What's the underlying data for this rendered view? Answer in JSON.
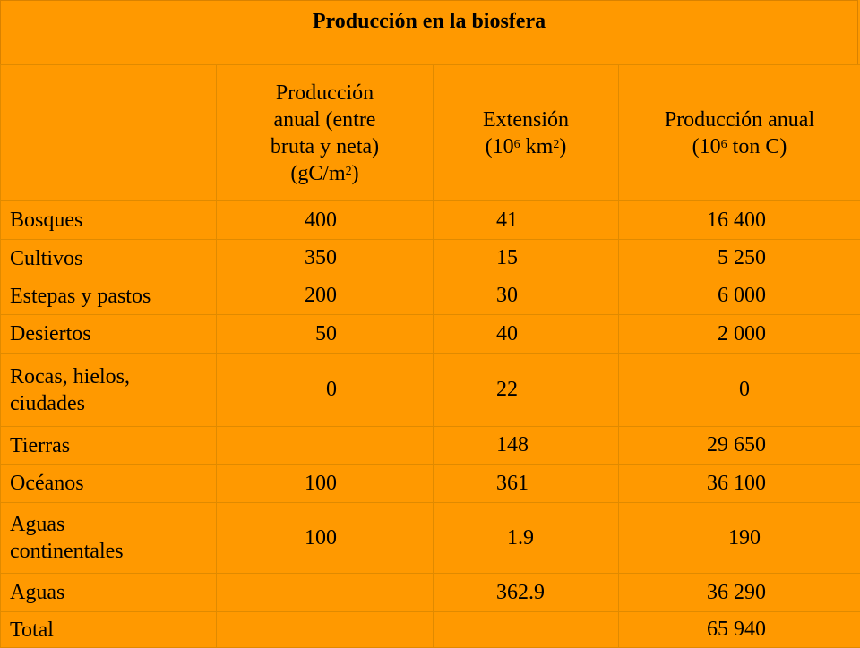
{
  "title": "Producción en la biosfera",
  "headers": {
    "col1": {
      "l1": "Producción",
      "l2": "anual (entre",
      "l3": "bruta y neta)",
      "l4a": "(gC/m",
      "l4sup": "2",
      "l4b": ")"
    },
    "col2": {
      "l1": "Extensión",
      "l2a": "(10",
      "l2sup1": "6",
      "l2b": " km",
      "l2sup2": "2",
      "l2c": ")"
    },
    "col3": {
      "l1": "Producción anual",
      "l2a": "(10",
      "l2sup": "6",
      "l2b": " ton C)"
    }
  },
  "rows": [
    {
      "label": "Bosques",
      "produccion": "400",
      "extension": "41",
      "anual": "16 400"
    },
    {
      "label": "Cultivos",
      "produccion": "350",
      "extension": "15",
      "anual": "  5 250"
    },
    {
      "label": "Estepas y pastos",
      "produccion": "200",
      "extension": "30",
      "anual": "  6 000"
    },
    {
      "label": "Desiertos",
      "produccion": "  50",
      "extension": "40",
      "anual": "  2 000"
    },
    {
      "label": "Rocas, hielos, ciudades",
      "produccion": "    0",
      "extension": "22",
      "anual": "      0"
    },
    {
      "label": "Tierras",
      "produccion": "",
      "extension": "148",
      "anual": "29 650"
    },
    {
      "label": "Océanos",
      "produccion": "100",
      "extension": "361",
      "anual": "36 100"
    },
    {
      "label": "Aguas continentales",
      "produccion": "100",
      "extension": "  1.9",
      "anual": "    190"
    },
    {
      "label": "Aguas",
      "produccion": "",
      "extension": "362.9",
      "anual": "36 290"
    },
    {
      "label": "Total",
      "produccion": "",
      "extension": "",
      "anual": "65 940"
    }
  ]
}
